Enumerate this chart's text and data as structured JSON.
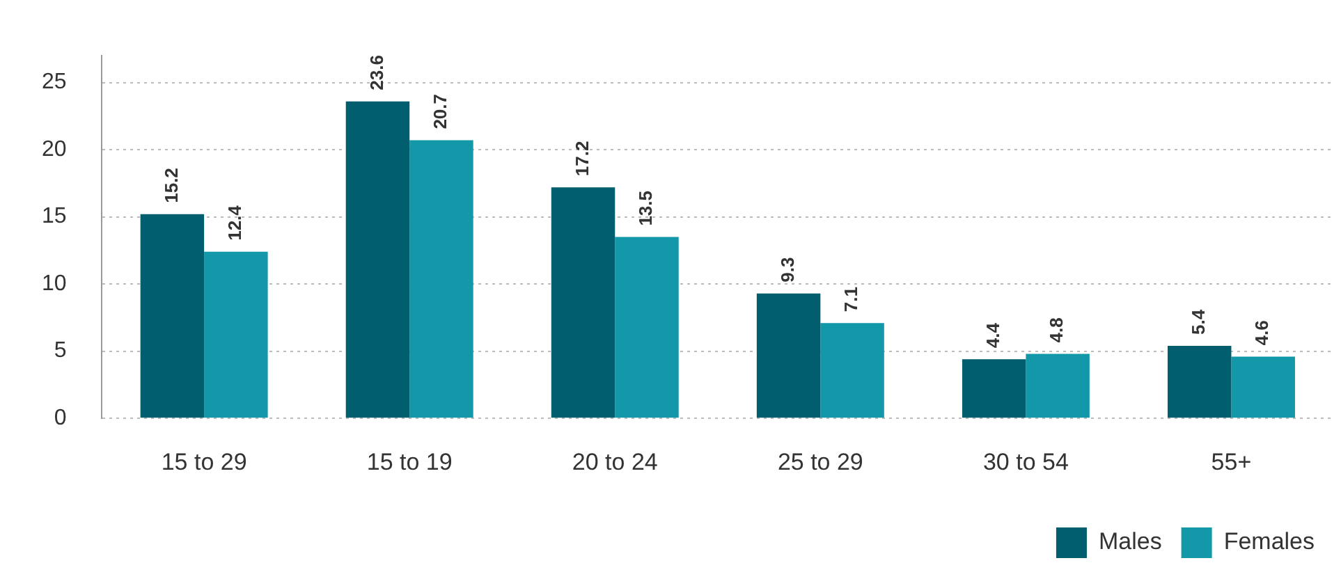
{
  "chart_data": {
    "type": "bar",
    "categories": [
      "15 to 29",
      "15 to 19",
      "20 to 24",
      "25 to 29",
      "30 to 54",
      "55+"
    ],
    "series": [
      {
        "name": "Males",
        "color": "#005e6e",
        "values": [
          15.2,
          23.6,
          17.2,
          9.3,
          4.4,
          5.4
        ]
      },
      {
        "name": "Females",
        "color": "#1298a8",
        "values": [
          12.4,
          20.7,
          13.5,
          7.1,
          4.8,
          4.6
        ]
      }
    ],
    "ylim": [
      0,
      27
    ],
    "yticks": [
      0,
      5,
      10,
      15,
      20,
      25
    ],
    "grid": "y",
    "legend": "bottom right",
    "data_labels": true
  }
}
